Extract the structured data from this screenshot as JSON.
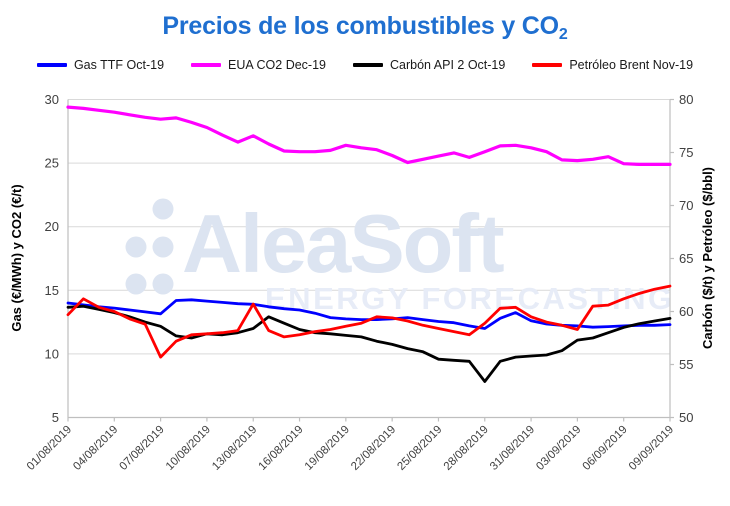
{
  "title": {
    "main": "Precios de los combustibles y CO",
    "subscript": "2"
  },
  "watermark": {
    "brand": "AleaSoft",
    "tagline": "ENERGY FORECASTING",
    "brand_color": "#DCE4F1",
    "tagline_color": "#E7ECF7"
  },
  "colors": {
    "title": "#1F6FD0",
    "grid": "#D9D9D9",
    "axis_line": "#BFBFBF",
    "tick_text": "#404040",
    "background": "#FFFFFF"
  },
  "chart_data": {
    "type": "line",
    "title": "Precios de los combustibles y CO2",
    "grid": true,
    "legend_position": "top",
    "x_tick_every": 3,
    "x_labels": [
      "01/08/2019",
      "02/08/2019",
      "03/08/2019",
      "04/08/2019",
      "05/08/2019",
      "06/08/2019",
      "07/08/2019",
      "08/08/2019",
      "09/08/2019",
      "10/08/2019",
      "11/08/2019",
      "12/08/2019",
      "13/08/2019",
      "14/08/2019",
      "15/08/2019",
      "16/08/2019",
      "17/08/2019",
      "18/08/2019",
      "19/08/2019",
      "20/08/2019",
      "21/08/2019",
      "22/08/2019",
      "23/08/2019",
      "24/08/2019",
      "25/08/2019",
      "26/08/2019",
      "27/08/2019",
      "28/08/2019",
      "29/08/2019",
      "30/08/2019",
      "31/08/2019",
      "01/09/2019",
      "02/09/2019",
      "03/09/2019",
      "04/09/2019",
      "05/09/2019",
      "06/09/2019",
      "07/09/2019",
      "08/09/2019",
      "09/09/2019"
    ],
    "left_axis": {
      "title": "Gas (€/MWh) y CO2 (€/t)",
      "min": 5,
      "max": 30,
      "ticks": [
        5,
        10,
        15,
        20,
        25,
        30
      ]
    },
    "right_axis": {
      "title": "Carbón ($/t) y Petróleo ($/bbl)",
      "min": 50,
      "max": 80,
      "ticks": [
        50,
        55,
        60,
        65,
        70,
        75,
        80
      ]
    },
    "series": [
      {
        "name": "Gas TTF Oct-19",
        "color": "#0000FF",
        "axis": "left",
        "width": 2.8,
        "values": [
          14.0,
          13.85,
          13.7,
          13.6,
          13.45,
          13.3,
          13.15,
          14.2,
          14.25,
          14.15,
          14.05,
          13.95,
          13.9,
          13.7,
          13.55,
          13.45,
          13.2,
          12.85,
          12.75,
          12.7,
          12.7,
          12.75,
          12.85,
          12.7,
          12.55,
          12.45,
          12.2,
          12.0,
          12.8,
          13.25,
          12.6,
          12.35,
          12.25,
          12.2,
          12.1,
          12.15,
          12.2,
          12.25,
          12.25,
          12.3
        ]
      },
      {
        "name": "EUA CO2 Dec-19",
        "color": "#FF00FF",
        "axis": "left",
        "width": 3.2,
        "values": [
          29.4,
          29.3,
          29.15,
          29.0,
          28.8,
          28.6,
          28.45,
          28.55,
          28.2,
          27.8,
          27.2,
          26.65,
          27.15,
          26.5,
          25.95,
          25.9,
          25.9,
          26.0,
          26.4,
          26.2,
          26.05,
          25.6,
          25.05,
          25.3,
          25.55,
          25.8,
          25.45,
          25.9,
          26.35,
          26.4,
          26.2,
          25.9,
          25.25,
          25.2,
          25.3,
          25.5,
          24.95,
          24.9,
          24.9,
          24.9
        ]
      },
      {
        "name": "Carbón API 2 Oct-19",
        "color": "#000000",
        "axis": "right",
        "width": 2.8,
        "values": [
          60.4,
          60.5,
          60.2,
          59.9,
          59.5,
          59.0,
          58.6,
          57.7,
          57.5,
          57.9,
          57.8,
          58.0,
          58.4,
          59.5,
          58.9,
          58.3,
          58.0,
          57.9,
          57.75,
          57.6,
          57.2,
          56.9,
          56.5,
          56.2,
          55.5,
          55.4,
          55.3,
          53.4,
          55.3,
          55.7,
          55.8,
          55.9,
          56.3,
          57.3,
          57.5,
          58.0,
          58.5,
          58.85,
          59.1,
          59.35
        ]
      },
      {
        "name": "Petróleo Brent Nov-19",
        "color": "#FF0000",
        "axis": "right",
        "width": 2.8,
        "values": [
          59.7,
          61.2,
          60.4,
          60.0,
          59.3,
          58.8,
          55.7,
          57.2,
          57.8,
          57.9,
          58.0,
          58.2,
          60.7,
          58.2,
          57.6,
          57.8,
          58.1,
          58.3,
          58.6,
          58.9,
          59.5,
          59.4,
          59.1,
          58.7,
          58.4,
          58.1,
          57.8,
          58.9,
          60.3,
          60.4,
          59.5,
          59.0,
          58.7,
          58.3,
          60.5,
          60.6,
          61.2,
          61.7,
          62.1,
          62.4
        ]
      }
    ]
  }
}
